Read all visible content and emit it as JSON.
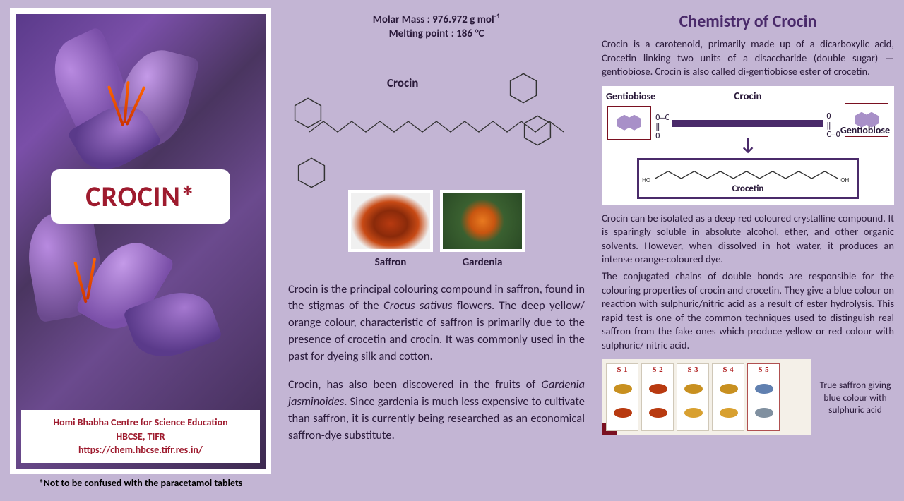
{
  "left": {
    "title": "CROCIN*",
    "institution_line1": "Homi Bhabha Centre for Science Education",
    "institution_line2": "HBCSE, TIFR",
    "institution_url": "https://chem.hbcse.tifr.res.in/",
    "footnote": "*Not to be confused with the paracetamol tablets"
  },
  "mid": {
    "molar_mass_label": "Molar Mass : 976.972 g mol",
    "molar_mass_exp": "-1",
    "melting_point": "Melting point : 186 °C",
    "structure_name": "Crocin",
    "img1_caption": "Saffron",
    "img2_caption": "Gardenia",
    "para1_a": "Crocin is the principal colouring compound in saffron, found in the stigmas of the ",
    "para1_em": "Crocus sativus",
    "para1_b": " flowers. The deep yellow/ orange colour, characteristic of saffron is primarily due to the presence of crocetin and crocin. It was commonly used in the past for dyeing silk and cotton.",
    "para2_a": "Crocin, has also been discovered in the fruits of ",
    "para2_em": "Gardenia jasminoides",
    "para2_b": ". Since gardenia is much less expensive to cultivate than saffron, it is currently being researched as an economical saffron-dye substitute."
  },
  "right": {
    "title": "Chemistry of Crocin",
    "intro": "Crocin is a carotenoid, primarily made up of a dicarboxylic acid, Crocetin linking two units of a disaccharide (double sugar) — gentiobiose. Crocin is also called di-gentiobiose ester of crocetin.",
    "diagram": {
      "top": "Crocin",
      "gentiobiose": "Gentiobiose",
      "crocetin": "Crocetin",
      "colors": {
        "bar": "#4a2a6a",
        "hex": "#a890c8",
        "box_border": "#7a1020"
      }
    },
    "para2": "Crocin can be isolated as a deep red coloured crystalline compound. It is sparingly soluble in absolute alcohol, ether, and other organic solvents. However, when dissolved in hot water, it produces an intense orange-coloured dye.",
    "para3": "The conjugated chains of double bonds are responsible for the colouring properties of crocin and crocetin. They give a blue colour on reaction with sulphuric/nitric acid as a result of ester hydrolysis. This rapid test is one of the common techniques used to distinguish real saffron from the fake ones which produce yellow or red colour with sulphuric/ nitric acid.",
    "slides": [
      {
        "label": "S-1",
        "c1": "#c89020",
        "c2": "#b83a10"
      },
      {
        "label": "S-2",
        "c1": "#b83a10",
        "c2": "#b83a10"
      },
      {
        "label": "S-3",
        "c1": "#c89020",
        "c2": "#d8a030"
      },
      {
        "label": "S-4",
        "c1": "#c89020",
        "c2": "#d8a030"
      },
      {
        "label": "S-5",
        "c1": "#6080b0",
        "c2": "#8090a0"
      }
    ],
    "badge": "1",
    "test_caption": "True saffron giving blue colour with sulphuric acid"
  },
  "colors": {
    "page_bg": "#c3b5d4",
    "accent_red": "#9e1b2e",
    "heading_purple": "#4a2a6a",
    "text": "#2a1a3a"
  }
}
